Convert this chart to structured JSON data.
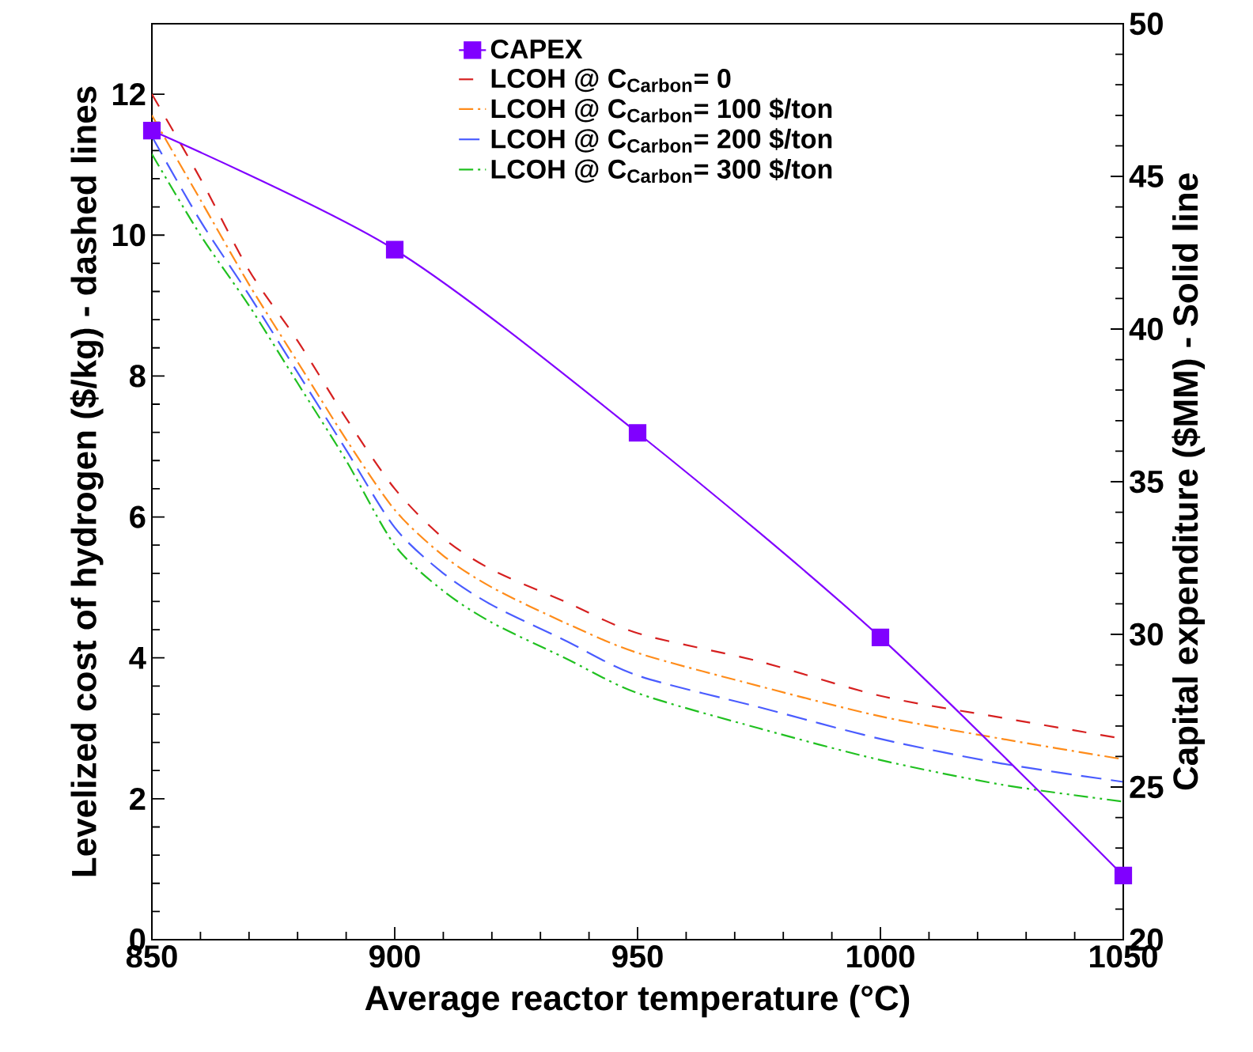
{
  "chart_data": {
    "type": "line",
    "xlabel": "Average reactor temperature (°C)",
    "ylabel": "Levelized cost of hydrogen ($/kg) - dashed lines",
    "y2label": "Capital expenditure ($MM) - Solid line",
    "xlim": [
      850,
      1050
    ],
    "xticks": [
      850,
      900,
      950,
      1000,
      1050
    ],
    "ylim": [
      0,
      13
    ],
    "yticks": [
      0,
      2,
      4,
      6,
      8,
      10,
      12
    ],
    "y2lim": [
      20,
      50
    ],
    "y2ticks": [
      20,
      25,
      30,
      35,
      40,
      45,
      50
    ],
    "legend": "top",
    "grid": false,
    "series": [
      {
        "name": "CAPEX",
        "color": "#8000ff",
        "axis": "y2",
        "marker": "square",
        "line_style": "solid",
        "x": [
          850,
          900,
          950,
          1000,
          1050
        ],
        "values": [
          46.5,
          42.6,
          36.6,
          29.9,
          22.1
        ]
      },
      {
        "name": "LCOH @ C$_{Carbon}$= 0",
        "color": "#d62020",
        "marker": "none",
        "line_style": "dashed",
        "x": [
          850,
          860,
          870,
          880,
          890,
          900,
          910,
          920,
          935,
          950,
          975,
          1000,
          1025,
          1050
        ],
        "values": [
          12.0,
          10.8,
          9.5,
          8.5,
          7.4,
          6.4,
          5.7,
          5.25,
          4.8,
          4.35,
          3.95,
          3.46,
          3.15,
          2.85
        ]
      },
      {
        "name": "LCOH @ C$_{Carbon}$= 100 $/ton",
        "color": "#ff8c1a",
        "marker": "none",
        "line_style": "dashdotted",
        "x": [
          850,
          860,
          870,
          880,
          890,
          900,
          910,
          920,
          935,
          950,
          975,
          1000,
          1025,
          1050
        ],
        "values": [
          11.7,
          10.5,
          9.3,
          8.2,
          7.1,
          6.1,
          5.45,
          5.0,
          4.5,
          4.07,
          3.6,
          3.17,
          2.85,
          2.56
        ]
      },
      {
        "name": "LCOH @ C$_{Carbon}$= 200 $/ton",
        "color": "#4a5cff",
        "marker": "none",
        "line_style": "longdashed",
        "x": [
          850,
          860,
          870,
          880,
          890,
          900,
          910,
          920,
          935,
          950,
          975,
          1000,
          1025,
          1050
        ],
        "values": [
          11.4,
          10.2,
          9.15,
          8.05,
          6.95,
          5.85,
          5.2,
          4.75,
          4.25,
          3.75,
          3.3,
          2.85,
          2.5,
          2.24
        ]
      },
      {
        "name": "LCOH @ C$_{Carbon}$= 300 $/ton",
        "color": "#20c020",
        "marker": "none",
        "line_style": "dashdotdotted",
        "x": [
          850,
          860,
          870,
          880,
          890,
          900,
          910,
          920,
          935,
          950,
          975,
          1000,
          1025,
          1050
        ],
        "values": [
          11.15,
          10.0,
          9.0,
          7.9,
          6.8,
          5.6,
          4.95,
          4.5,
          4.0,
          3.5,
          3.0,
          2.55,
          2.2,
          1.96
        ]
      }
    ]
  }
}
